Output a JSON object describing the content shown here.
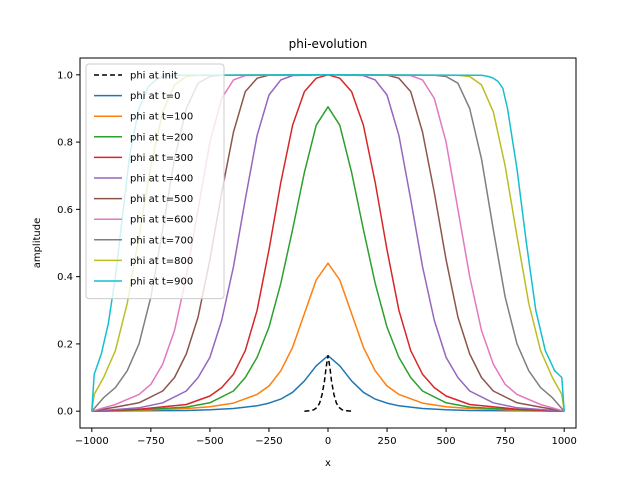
{
  "chart_data": {
    "type": "line",
    "title": "phi-evolution",
    "xlabel": "x",
    "ylabel": "amplitude",
    "xlim": [
      -1050,
      1050
    ],
    "ylim": [
      -0.05,
      1.05
    ],
    "xticks": [
      -1000,
      -750,
      -500,
      -250,
      0,
      250,
      500,
      750,
      1000
    ],
    "yticks": [
      0.0,
      0.2,
      0.4,
      0.6,
      0.8,
      1.0
    ],
    "xtick_labels": [
      "−1000",
      "−750",
      "−500",
      "−250",
      "0",
      "250",
      "500",
      "750",
      "1000"
    ],
    "ytick_labels": [
      "0.0",
      "0.2",
      "0.4",
      "0.6",
      "0.8",
      "1.0"
    ],
    "grid": false,
    "legend_position": "upper-left",
    "series": [
      {
        "name": "phi at init",
        "color": "#000000",
        "dashed": true,
        "x": [
          -100,
          -80,
          -60,
          -45,
          -35,
          -25,
          -15,
          -8,
          0,
          8,
          15,
          25,
          35,
          45,
          60,
          80,
          100
        ],
        "y": [
          0.0,
          0.001,
          0.004,
          0.012,
          0.025,
          0.05,
          0.09,
          0.13,
          0.165,
          0.13,
          0.09,
          0.05,
          0.025,
          0.012,
          0.004,
          0.001,
          0.0
        ]
      },
      {
        "name": "phi at t=0",
        "color": "#1f77b4",
        "dashed": false,
        "x": [
          -1000,
          -800,
          -600,
          -500,
          -400,
          -300,
          -250,
          -200,
          -150,
          -100,
          -50,
          0,
          50,
          100,
          150,
          200,
          250,
          300,
          400,
          500,
          600,
          800,
          1000
        ],
        "y": [
          0.0,
          0.001,
          0.002,
          0.004,
          0.008,
          0.016,
          0.024,
          0.036,
          0.056,
          0.09,
          0.135,
          0.165,
          0.135,
          0.09,
          0.056,
          0.036,
          0.024,
          0.016,
          0.008,
          0.004,
          0.002,
          0.001,
          0.0
        ]
      },
      {
        "name": "phi at t=100",
        "color": "#ff7f0e",
        "dashed": false,
        "x": [
          -1000,
          -800,
          -600,
          -500,
          -400,
          -300,
          -250,
          -200,
          -150,
          -100,
          -50,
          0,
          50,
          100,
          150,
          200,
          250,
          300,
          400,
          500,
          600,
          800,
          1000
        ],
        "y": [
          0.0,
          0.003,
          0.008,
          0.013,
          0.024,
          0.05,
          0.075,
          0.12,
          0.19,
          0.29,
          0.39,
          0.44,
          0.39,
          0.29,
          0.19,
          0.12,
          0.075,
          0.05,
          0.024,
          0.013,
          0.008,
          0.003,
          0.0
        ]
      },
      {
        "name": "phi at t=200",
        "color": "#2ca02c",
        "dashed": false,
        "x": [
          -1000,
          -800,
          -600,
          -500,
          -400,
          -350,
          -300,
          -250,
          -200,
          -150,
          -100,
          -50,
          0,
          50,
          100,
          150,
          200,
          250,
          300,
          350,
          400,
          500,
          600,
          800,
          1000
        ],
        "y": [
          0.0,
          0.004,
          0.012,
          0.025,
          0.06,
          0.1,
          0.16,
          0.25,
          0.38,
          0.54,
          0.71,
          0.85,
          0.905,
          0.85,
          0.71,
          0.54,
          0.38,
          0.25,
          0.16,
          0.1,
          0.06,
          0.025,
          0.012,
          0.004,
          0.0
        ]
      },
      {
        "name": "phi at t=300",
        "color": "#d62728",
        "dashed": false,
        "x": [
          -1000,
          -800,
          -600,
          -500,
          -450,
          -400,
          -350,
          -300,
          -250,
          -200,
          -150,
          -100,
          -50,
          0,
          50,
          100,
          150,
          200,
          250,
          300,
          350,
          400,
          450,
          500,
          600,
          800,
          1000
        ],
        "y": [
          0.0,
          0.006,
          0.02,
          0.045,
          0.07,
          0.11,
          0.18,
          0.3,
          0.48,
          0.68,
          0.85,
          0.95,
          0.99,
          1.0,
          0.99,
          0.95,
          0.85,
          0.68,
          0.48,
          0.3,
          0.18,
          0.11,
          0.07,
          0.045,
          0.02,
          0.006,
          0.0
        ]
      },
      {
        "name": "phi at t=400",
        "color": "#9467bd",
        "dashed": false,
        "x": [
          -1000,
          -800,
          -700,
          -600,
          -550,
          -500,
          -450,
          -400,
          -350,
          -300,
          -250,
          -200,
          -150,
          0,
          150,
          200,
          250,
          300,
          350,
          400,
          450,
          500,
          550,
          600,
          700,
          800,
          1000
        ],
        "y": [
          0.0,
          0.01,
          0.025,
          0.06,
          0.1,
          0.16,
          0.27,
          0.43,
          0.63,
          0.82,
          0.94,
          0.985,
          0.998,
          1.0,
          0.998,
          0.985,
          0.94,
          0.82,
          0.63,
          0.43,
          0.27,
          0.16,
          0.1,
          0.06,
          0.025,
          0.01,
          0.0
        ]
      },
      {
        "name": "phi at t=500",
        "color": "#8c564b",
        "dashed": false,
        "x": [
          -1000,
          -900,
          -800,
          -700,
          -650,
          -600,
          -550,
          -500,
          -450,
          -400,
          -350,
          -300,
          -250,
          0,
          250,
          300,
          350,
          400,
          450,
          500,
          550,
          600,
          650,
          700,
          800,
          900,
          1000
        ],
        "y": [
          0.0,
          0.012,
          0.025,
          0.06,
          0.1,
          0.17,
          0.28,
          0.45,
          0.65,
          0.83,
          0.95,
          0.99,
          0.999,
          1.0,
          0.999,
          0.99,
          0.95,
          0.83,
          0.65,
          0.45,
          0.28,
          0.17,
          0.1,
          0.06,
          0.025,
          0.012,
          0.0
        ]
      },
      {
        "name": "phi at t=600",
        "color": "#e377c2",
        "dashed": false,
        "x": [
          -1000,
          -900,
          -800,
          -750,
          -700,
          -650,
          -600,
          -550,
          -500,
          -450,
          -400,
          -350,
          0,
          350,
          400,
          450,
          500,
          550,
          600,
          650,
          700,
          750,
          800,
          900,
          1000
        ],
        "y": [
          0.0,
          0.02,
          0.05,
          0.08,
          0.14,
          0.24,
          0.4,
          0.6,
          0.8,
          0.93,
          0.985,
          0.998,
          1.0,
          0.998,
          0.985,
          0.93,
          0.8,
          0.6,
          0.4,
          0.24,
          0.14,
          0.08,
          0.05,
          0.02,
          0.0
        ]
      },
      {
        "name": "phi at t=700",
        "color": "#7f7f7f",
        "dashed": false,
        "x": [
          -1000,
          -950,
          -900,
          -850,
          -800,
          -750,
          -700,
          -650,
          -600,
          -550,
          -500,
          -450,
          0,
          450,
          500,
          550,
          600,
          650,
          700,
          750,
          800,
          850,
          900,
          950,
          1000
        ],
        "y": [
          0.0,
          0.04,
          0.07,
          0.12,
          0.2,
          0.34,
          0.54,
          0.75,
          0.9,
          0.975,
          0.995,
          0.999,
          1.0,
          0.999,
          0.995,
          0.975,
          0.9,
          0.75,
          0.54,
          0.34,
          0.2,
          0.12,
          0.07,
          0.04,
          0.0
        ]
      },
      {
        "name": "phi at t=800",
        "color": "#bcbd22",
        "dashed": false,
        "x": [
          -1000,
          -990,
          -950,
          -900,
          -850,
          -800,
          -750,
          -700,
          -650,
          -600,
          -550,
          0,
          550,
          600,
          650,
          700,
          750,
          800,
          850,
          900,
          950,
          990,
          1000
        ],
        "y": [
          0.0,
          0.05,
          0.1,
          0.18,
          0.32,
          0.52,
          0.73,
          0.89,
          0.97,
          0.995,
          0.999,
          1.0,
          0.999,
          0.995,
          0.97,
          0.89,
          0.73,
          0.52,
          0.32,
          0.18,
          0.1,
          0.05,
          0.0
        ]
      },
      {
        "name": "phi at t=900",
        "color": "#17becf",
        "dashed": false,
        "x": [
          -1000,
          -990,
          -960,
          -930,
          -900,
          -870,
          -840,
          -800,
          -760,
          -720,
          -680,
          -650,
          0,
          650,
          680,
          700,
          720,
          740,
          760,
          800,
          840,
          880,
          920,
          960,
          990,
          1000
        ],
        "y": [
          0.0,
          0.11,
          0.17,
          0.26,
          0.4,
          0.58,
          0.76,
          0.9,
          0.965,
          0.99,
          0.997,
          0.999,
          1.0,
          0.999,
          0.995,
          0.99,
          0.98,
          0.96,
          0.9,
          0.72,
          0.5,
          0.3,
          0.18,
          0.12,
          0.1,
          0.0
        ]
      }
    ]
  }
}
